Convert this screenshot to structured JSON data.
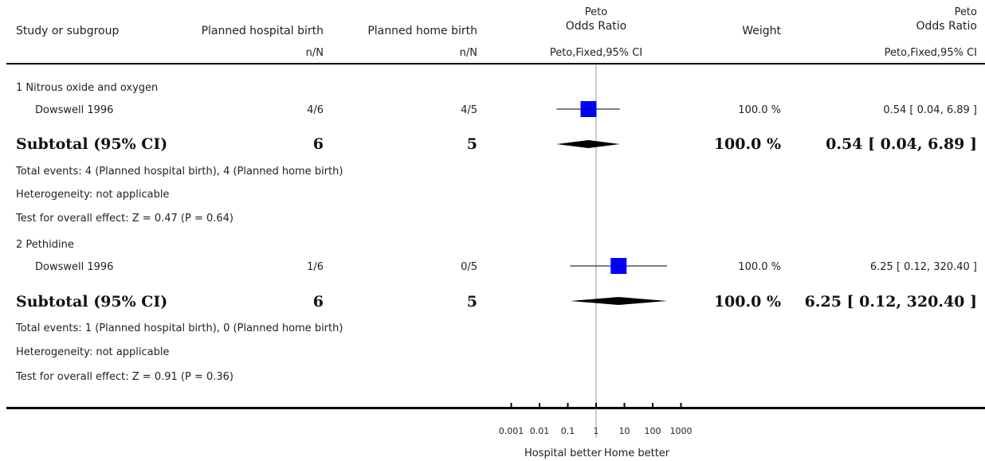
{
  "header": {
    "study": "Study or subgroup",
    "group1": "Planned hospital birth",
    "group2": "Planned home birth",
    "plot_title_top": "Peto",
    "plot_title": "Odds Ratio",
    "weight": "Weight",
    "or_title_top": "Peto",
    "or_title": "Odds Ratio",
    "n1": "n/N",
    "n2": "n/N",
    "plot_method": "Peto,Fixed,95% CI",
    "or_method": "Peto,Fixed,95% CI"
  },
  "subgroups": [
    {
      "title": "1 Nitrous oxide and oxygen",
      "study": {
        "name": "Dowswell 1996",
        "g1": "4/6",
        "g2": "4/5",
        "weight": "100.0 %",
        "ci": "0.54 [ 0.04, 6.89 ]"
      },
      "subtotal": {
        "label": "Subtotal (95% CI)",
        "g1": "6",
        "g2": "5",
        "weight": "100.0 %",
        "ci": "0.54 [ 0.04, 6.89 ]"
      },
      "notes": {
        "events": "Total events: 4 (Planned hospital birth), 4 (Planned home birth)",
        "heterogeneity": "Heterogeneity: not applicable",
        "test": "Test for overall effect: Z = 0.47  (P = 0.64)"
      }
    },
    {
      "title": "2 Pethidine",
      "study": {
        "name": "Dowswell 1996",
        "g1": "1/6",
        "g2": "0/5",
        "weight": "100.0 %",
        "ci": "6.25 [ 0.12, 320.40 ]"
      },
      "subtotal": {
        "label": "Subtotal (95% CI)",
        "g1": "6",
        "g2": "5",
        "weight": "100.0 %",
        "ci": "6.25 [ 0.12, 320.40 ]"
      },
      "notes": {
        "events": "Total events: 1 (Planned hospital birth), 0 (Planned home birth)",
        "heterogeneity": "Heterogeneity: not applicable",
        "test": "Test for overall effect: Z = 0.91  (P = 0.36)"
      }
    }
  ],
  "axis": {
    "ticks": [
      "0.001",
      "0.01",
      "0.1",
      "1",
      "10",
      "100",
      "1000"
    ],
    "left_label": "Hospital better",
    "right_label": "Home better"
  },
  "colors": {
    "box": "#0000ff",
    "diamond": "#000000",
    "line": "#000000",
    "null_line": "#999999"
  },
  "chart_data": {
    "type": "forest",
    "scale": "log",
    "xlim": [
      0.001,
      1000
    ],
    "x_ticks": [
      0.001,
      0.01,
      0.1,
      1,
      10,
      100,
      1000
    ],
    "studies": [
      {
        "subgroup": "1 Nitrous oxide and oxygen",
        "name": "Dowswell 1996",
        "or": 0.54,
        "lo": 0.04,
        "hi": 6.89,
        "weight": 100.0
      },
      {
        "subgroup": "2 Pethidine",
        "name": "Dowswell 1996",
        "or": 6.25,
        "lo": 0.12,
        "hi": 320.4,
        "weight": 100.0
      }
    ],
    "subtotals": [
      {
        "subgroup": "1 Nitrous oxide and oxygen",
        "or": 0.54,
        "lo": 0.04,
        "hi": 6.89
      },
      {
        "subgroup": "2 Pethidine",
        "or": 6.25,
        "lo": 0.12,
        "hi": 320.4
      }
    ]
  }
}
